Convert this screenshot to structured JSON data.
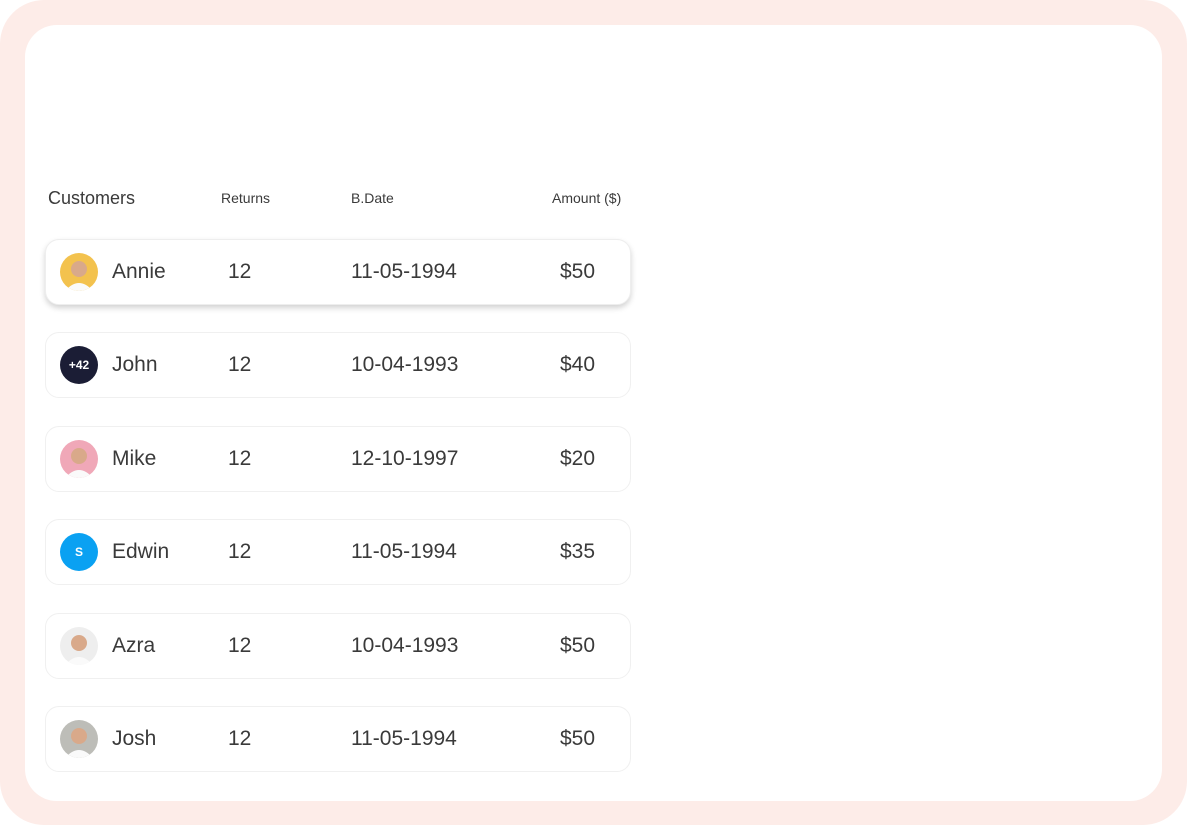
{
  "headers": {
    "customers": "Customers",
    "returns": "Returns",
    "bdate": "B.Date",
    "amount": "Amount ($)"
  },
  "rows": [
    {
      "name": "Annie",
      "returns": "12",
      "date": "11-05-1994",
      "amount": "$50",
      "avatar": "photo",
      "avatar_bg": "#f3c24e"
    },
    {
      "name": "John",
      "returns": "12",
      "date": "10-04-1993",
      "amount": "$40",
      "avatar": "text",
      "avatar_text": "+42",
      "avatar_bg": "#1b1d35"
    },
    {
      "name": "Mike",
      "returns": "12",
      "date": "12-10-1997",
      "amount": "$20",
      "avatar": "photo",
      "avatar_bg": "#f0a8b8"
    },
    {
      "name": "Edwin",
      "returns": "12",
      "date": "11-05-1994",
      "amount": "$35",
      "avatar": "text",
      "avatar_text": "S",
      "avatar_bg": "#0aa1f2"
    },
    {
      "name": "Azra",
      "returns": "12",
      "date": "10-04-1993",
      "amount": "$50",
      "avatar": "photo",
      "avatar_bg": "#eeeeee"
    },
    {
      "name": "Josh",
      "returns": "12",
      "date": "11-05-1994",
      "amount": "$50",
      "avatar": "photo",
      "avatar_bg": "#bdbdb8"
    }
  ],
  "colors": {
    "frame": "#fdece8",
    "panel": "#ffffff",
    "text": "#3a3a3a"
  }
}
